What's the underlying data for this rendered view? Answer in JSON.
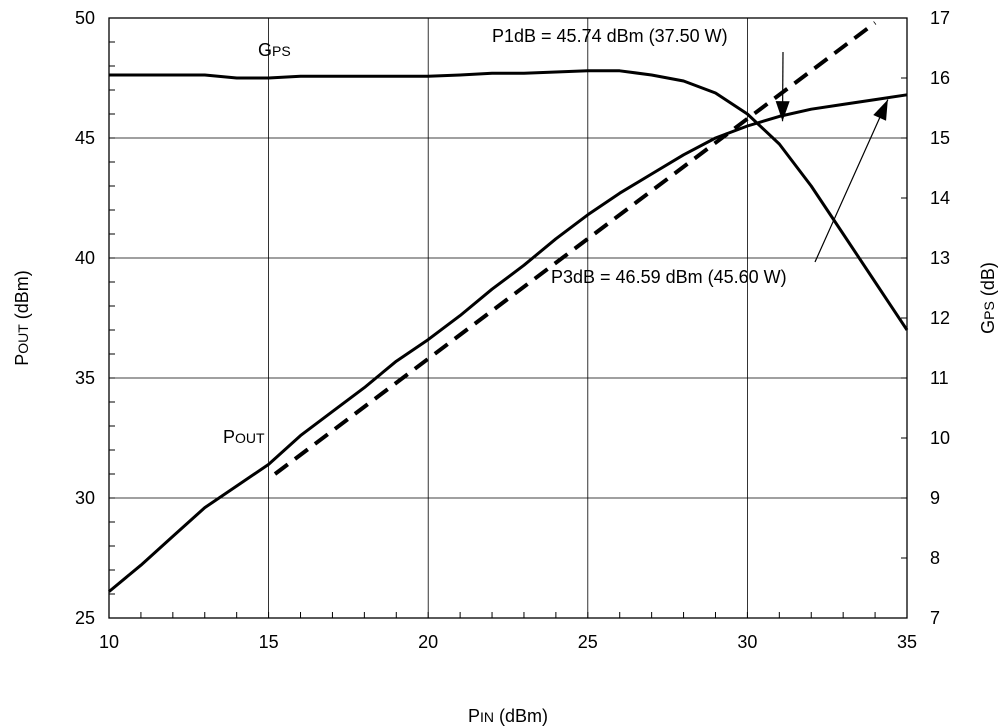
{
  "chart_data": {
    "type": "line",
    "x": {
      "label_main": "P",
      "label_sub": "IN",
      "label_unit": " (dBm)",
      "range": [
        10,
        35
      ],
      "ticks": [
        10,
        15,
        20,
        25,
        30,
        35
      ],
      "tick_labels": [
        "10",
        "15",
        "20",
        "25",
        "30",
        "35"
      ]
    },
    "y_left": {
      "label_main": "P",
      "label_sub": "OUT",
      "label_unit": " (dBm)",
      "range": [
        25,
        50
      ],
      "ticks": [
        25,
        30,
        35,
        40,
        45,
        50
      ],
      "tick_labels": [
        "25",
        "30",
        "35",
        "40",
        "45",
        "50"
      ]
    },
    "y_right": {
      "label_main": "G",
      "label_sub": "PS",
      "label_unit": " (dB)",
      "range": [
        7,
        17
      ],
      "ticks": [
        7,
        8,
        9,
        10,
        11,
        12,
        13,
        14,
        15,
        16,
        17
      ],
      "tick_labels": [
        "7",
        "8",
        "9",
        "10",
        "11",
        "12",
        "13",
        "14",
        "15",
        "16",
        "17"
      ]
    },
    "grid": true,
    "series": [
      {
        "name_main": "P",
        "name_sub": "OUT",
        "axis": "left",
        "style": "solid",
        "points": [
          [
            10,
            26.1
          ],
          [
            11,
            27.2
          ],
          [
            12,
            28.4
          ],
          [
            13,
            29.6
          ],
          [
            14,
            30.5
          ],
          [
            15,
            31.4
          ],
          [
            16,
            32.6
          ],
          [
            17,
            33.6
          ],
          [
            18,
            34.6
          ],
          [
            19,
            35.7
          ],
          [
            20,
            36.6
          ],
          [
            21,
            37.6
          ],
          [
            22,
            38.7
          ],
          [
            23,
            39.7
          ],
          [
            24,
            40.8
          ],
          [
            25,
            41.8
          ],
          [
            26,
            42.7
          ],
          [
            27,
            43.5
          ],
          [
            28,
            44.3
          ],
          [
            29,
            45.0
          ],
          [
            30,
            45.5
          ],
          [
            31,
            45.9
          ],
          [
            32,
            46.2
          ],
          [
            33,
            46.4
          ],
          [
            34,
            46.6
          ],
          [
            35,
            46.8
          ]
        ]
      },
      {
        "name_main": "",
        "name_sub": "",
        "axis": "left",
        "style": "dashed",
        "points": [
          [
            15.2,
            31.0
          ],
          [
            20,
            35.8
          ],
          [
            25,
            40.8
          ],
          [
            30,
            45.8
          ],
          [
            34,
            49.8
          ]
        ]
      },
      {
        "name_main": "G",
        "name_sub": "PS",
        "axis": "right",
        "style": "solid",
        "points": [
          [
            10,
            16.05
          ],
          [
            11,
            16.05
          ],
          [
            12,
            16.05
          ],
          [
            13,
            16.05
          ],
          [
            14,
            16.0
          ],
          [
            15,
            16.0
          ],
          [
            16,
            16.03
          ],
          [
            17,
            16.03
          ],
          [
            18,
            16.03
          ],
          [
            19,
            16.03
          ],
          [
            20,
            16.03
          ],
          [
            21,
            16.05
          ],
          [
            22,
            16.08
          ],
          [
            23,
            16.08
          ],
          [
            24,
            16.1
          ],
          [
            25,
            16.12
          ],
          [
            26,
            16.12
          ],
          [
            27,
            16.05
          ],
          [
            28,
            15.95
          ],
          [
            29,
            15.75
          ],
          [
            30,
            15.4
          ],
          [
            31,
            14.9
          ],
          [
            32,
            14.2
          ],
          [
            33,
            13.4
          ],
          [
            34,
            12.6
          ],
          [
            35,
            11.8
          ]
        ]
      }
    ],
    "annotations": [
      {
        "text": "P1dB = 45.74 dBm (37.50 W)",
        "arrow_to": [
          31.1,
          45.7
        ]
      },
      {
        "text": "P3dB = 46.59 dBm (45.60 W)",
        "arrow_to": [
          34.4,
          46.6
        ]
      }
    ]
  }
}
